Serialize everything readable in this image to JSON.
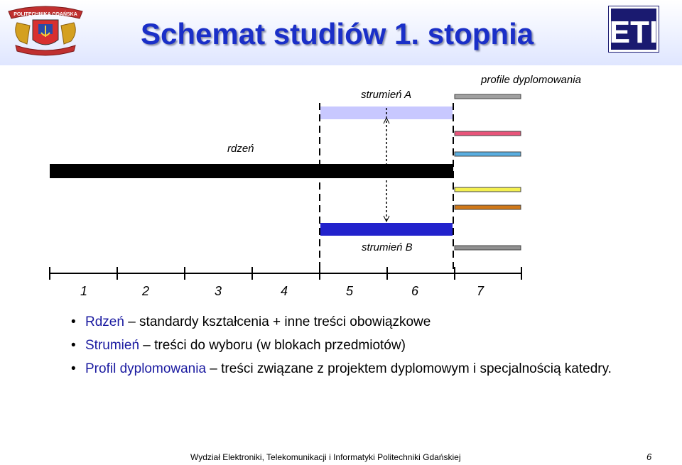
{
  "slide": {
    "title": "Schemat studiów 1. stopnia"
  },
  "logos": {
    "crest_text": "POLITECHNIKA GDAŃSKA",
    "eti_text": "ETI"
  },
  "diagram": {
    "label_streamA": "strumień A",
    "label_profiles": "profile dyplomowania",
    "label_core": "rdzeń",
    "label_streamB": "strumień B",
    "semesters": [
      "1",
      "2",
      "3",
      "4",
      "5",
      "6",
      "7"
    ],
    "colors": {
      "core": "#000000",
      "streamA": "#c8c8ff",
      "streamB": "#2222cc",
      "profiles": [
        "#a0a0a0",
        "#e8557a",
        "#5aaee0",
        "#f4f050",
        "#d07818",
        "#909090"
      ]
    }
  },
  "bullets": [
    {
      "term": "Rdzeń",
      "text": " – standardy kształcenia + inne treści obowiązkowe"
    },
    {
      "term": "Strumień",
      "text": " – treści do wyboru (w blokach przedmiotów)"
    },
    {
      "term": "Profil dyplomowania",
      "text": " – treści związane z projektem dyplomowym i specjalnością katedry."
    }
  ],
  "footer": {
    "text": "Wydział Elektroniki, Telekomunikacji i Informatyki Politechniki Gdańskiej",
    "page": "6"
  }
}
